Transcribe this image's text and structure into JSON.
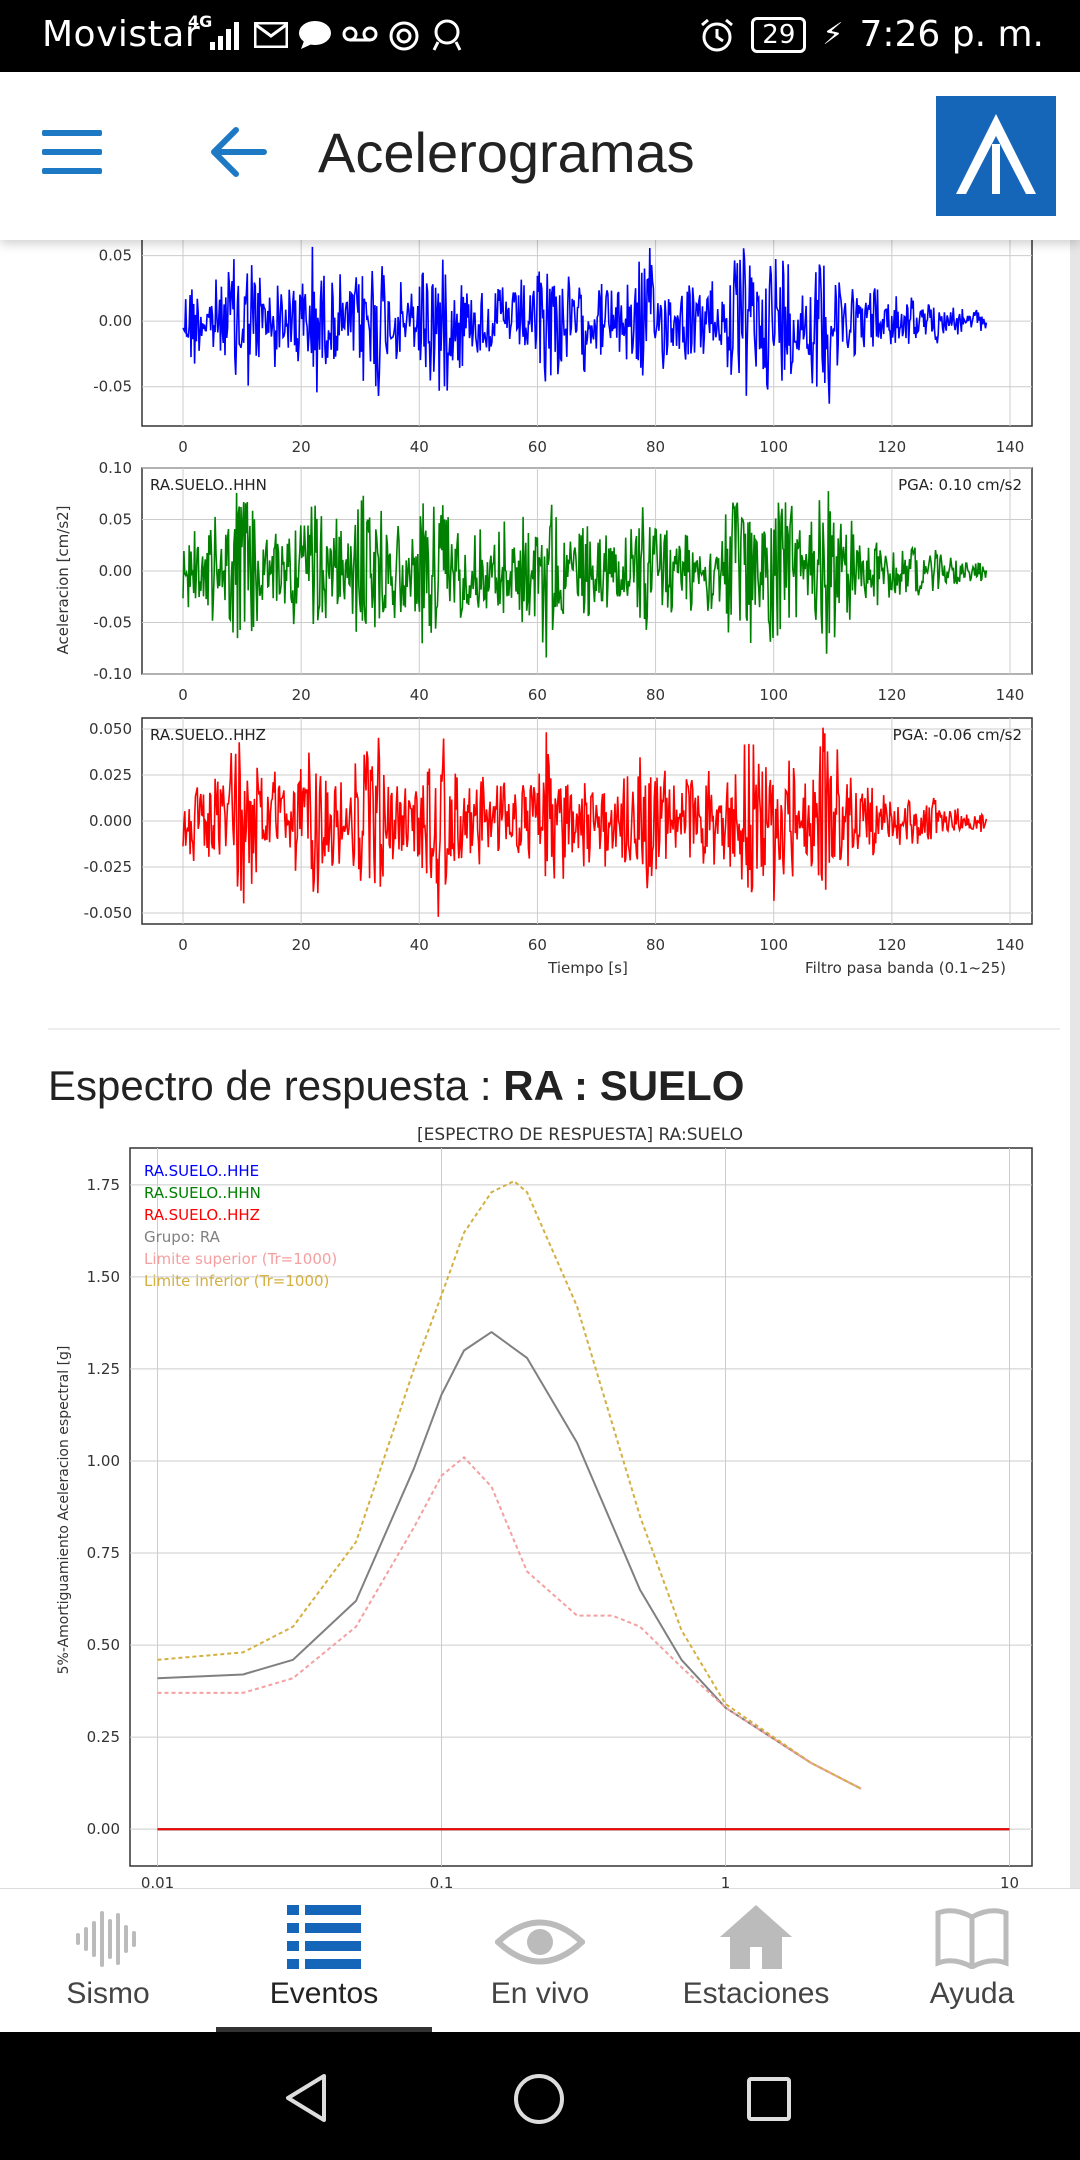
{
  "status_bar": {
    "carrier": "Movistar",
    "network": "4G",
    "battery": "29",
    "time": "7:26 p. m."
  },
  "app_bar": {
    "title": "Acelerogramas"
  },
  "accelerograms": {
    "ylabel": "Aceleracion [cm/s2]",
    "xlabel": "Tiempo [s]",
    "filter_note": "Filtro pasa banda (0.1~25)",
    "x_ticks": [
      "0",
      "20",
      "40",
      "60",
      "80",
      "100",
      "120",
      "140"
    ],
    "traces": [
      {
        "name": "",
        "pga": "",
        "color": "#0000ff",
        "y_ticks": [
          "0.05",
          "0.00",
          "-0.05"
        ]
      },
      {
        "name": "RA.SUELO..HHN",
        "pga": "PGA: 0.10 cm/s2",
        "color": "#008000",
        "y_ticks": [
          "0.10",
          "0.05",
          "0.00",
          "-0.05",
          "-0.10"
        ]
      },
      {
        "name": "RA.SUELO..HHZ",
        "pga": "PGA: -0.06 cm/s2",
        "color": "#ff0000",
        "y_ticks": [
          "0.050",
          "0.025",
          "0.000",
          "-0.025",
          "-0.050"
        ]
      }
    ]
  },
  "spectrum_section": {
    "title_prefix": "Espectro de respuesta : ",
    "title_bold": "RA : SUELO"
  },
  "chart_data": {
    "type": "line",
    "title": "[ESPECTRO DE RESPUESTA] RA:SUELO",
    "ylabel": "5%-Amortiguamiento Aceleracion espectral [g]",
    "xscale": "log",
    "xlim": [
      0.008,
      12
    ],
    "ylim": [
      -0.1,
      1.85
    ],
    "x_ticks": [
      "0.01",
      "0.1",
      "1",
      "10"
    ],
    "y_ticks": [
      "0.00",
      "0.25",
      "0.50",
      "0.75",
      "1.00",
      "1.25",
      "1.50",
      "1.75"
    ],
    "grid": true,
    "legend_position": "top-left",
    "series": [
      {
        "name": "RA.SUELO..HHE",
        "color": "#0000ff",
        "x": [
          0.01,
          10
        ],
        "y": [
          0.0,
          0.0
        ]
      },
      {
        "name": "RA.SUELO..HHN",
        "color": "#008000",
        "x": [
          0.01,
          10
        ],
        "y": [
          0.0,
          0.0
        ]
      },
      {
        "name": "RA.SUELO..HHZ",
        "color": "#ff0000",
        "x": [
          0.01,
          10
        ],
        "y": [
          0.0,
          0.0
        ]
      },
      {
        "name": "Grupo: RA",
        "color": "#808080",
        "x": [
          0.01,
          0.02,
          0.03,
          0.05,
          0.08,
          0.1,
          0.12,
          0.15,
          0.2,
          0.3,
          0.5,
          0.7,
          1.0,
          2.0,
          3.0
        ],
        "y": [
          0.41,
          0.42,
          0.46,
          0.62,
          0.98,
          1.18,
          1.3,
          1.35,
          1.28,
          1.05,
          0.65,
          0.46,
          0.33,
          0.18,
          0.11
        ]
      },
      {
        "name": "Limite superior (Tr=1000)",
        "color": "#f4a0a0",
        "x": [
          0.01,
          0.02,
          0.03,
          0.05,
          0.08,
          0.1,
          0.12,
          0.15,
          0.2,
          0.3,
          0.4,
          0.5,
          0.7,
          1.0,
          2.0,
          3.0
        ],
        "y": [
          0.37,
          0.37,
          0.41,
          0.55,
          0.82,
          0.96,
          1.01,
          0.93,
          0.7,
          0.58,
          0.58,
          0.55,
          0.44,
          0.33,
          0.18,
          0.11
        ]
      },
      {
        "name": "Limite inferior (Tr=1000)",
        "color": "#d4b040",
        "x": [
          0.01,
          0.02,
          0.03,
          0.05,
          0.08,
          0.1,
          0.12,
          0.15,
          0.18,
          0.2,
          0.3,
          0.5,
          0.7,
          1.0,
          2.0,
          3.0
        ],
        "y": [
          0.46,
          0.48,
          0.55,
          0.78,
          1.25,
          1.45,
          1.62,
          1.73,
          1.76,
          1.73,
          1.42,
          0.85,
          0.54,
          0.34,
          0.18,
          0.11
        ]
      }
    ]
  },
  "bottom_nav": [
    {
      "label": "Sismo",
      "icon": "waveform-icon"
    },
    {
      "label": "Eventos",
      "icon": "list-icon",
      "active": true
    },
    {
      "label": "En vivo",
      "icon": "eye-icon"
    },
    {
      "label": "Estaciones",
      "icon": "home-icon"
    },
    {
      "label": "Ayuda",
      "icon": "book-icon"
    }
  ]
}
